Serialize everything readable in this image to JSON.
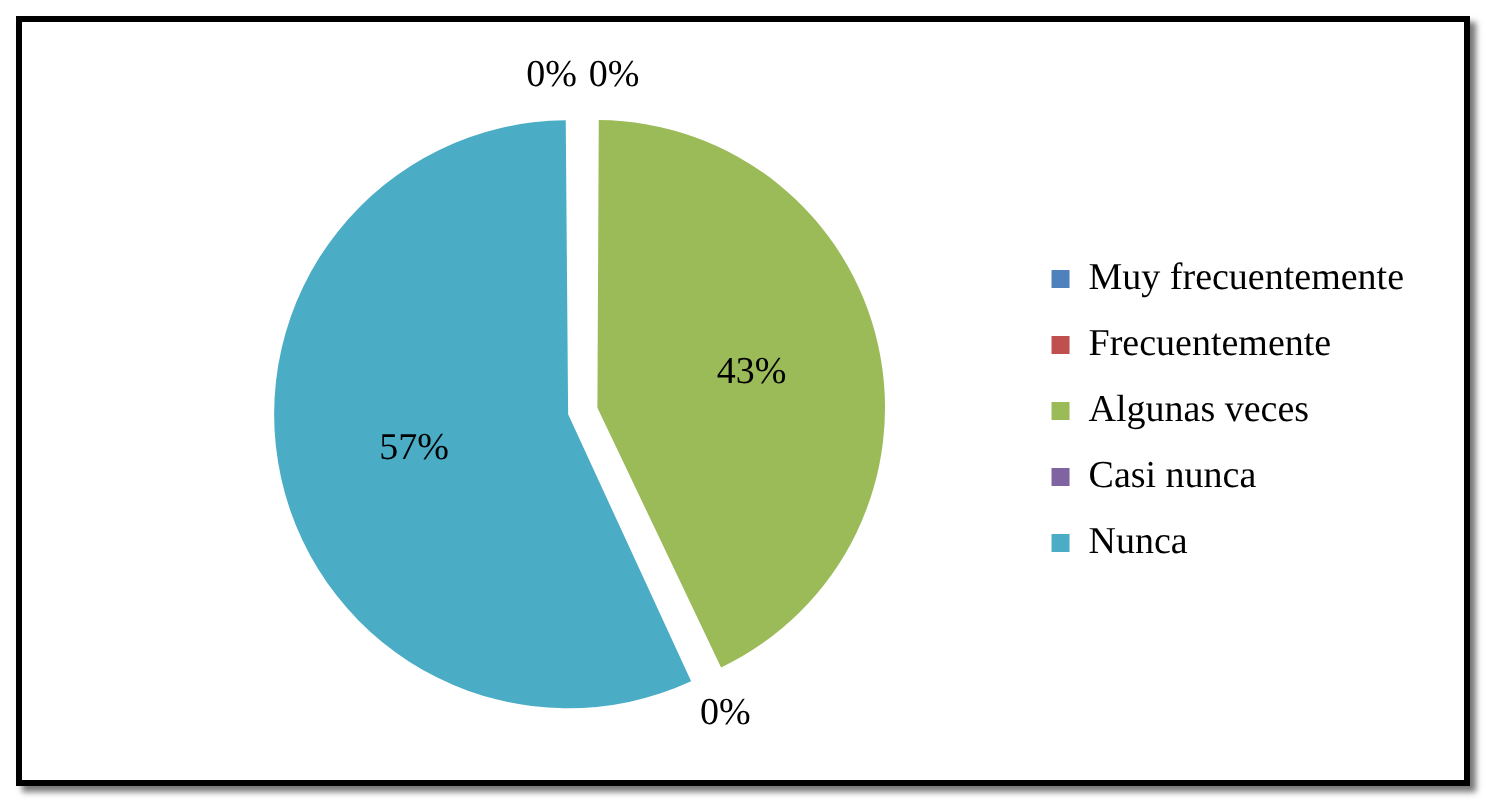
{
  "chart_data": {
    "type": "pie",
    "categories": [
      "Muy frecuentemente",
      "Frecuentemente",
      "Algunas veces",
      "Casi nunca",
      "Nunca"
    ],
    "values": [
      0,
      0,
      43,
      0,
      57
    ],
    "colors": [
      "#4f81bd",
      "#c0504d",
      "#9bbb59",
      "#8064a2",
      "#4bacc6"
    ],
    "value_labels": [
      "0%",
      "0%",
      "43%",
      "0%",
      "57%"
    ],
    "legend": "right"
  }
}
